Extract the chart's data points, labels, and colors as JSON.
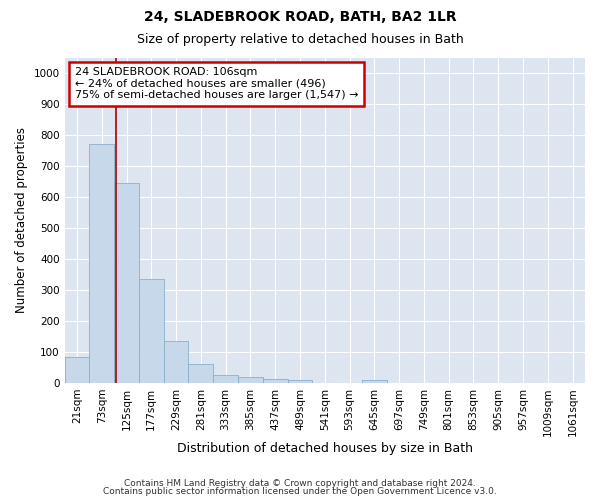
{
  "title": "24, SLADEBROOK ROAD, BATH, BA2 1LR",
  "subtitle": "Size of property relative to detached houses in Bath",
  "xlabel": "Distribution of detached houses by size in Bath",
  "ylabel": "Number of detached properties",
  "bar_color": "#c8d8eb",
  "bar_edge_color": "#8ab0cc",
  "background_color": "#dde6f0",
  "grid_color": "#ffffff",
  "categories": [
    "21sqm",
    "73sqm",
    "125sqm",
    "177sqm",
    "229sqm",
    "281sqm",
    "333sqm",
    "385sqm",
    "437sqm",
    "489sqm",
    "541sqm",
    "593sqm",
    "645sqm",
    "697sqm",
    "749sqm",
    "801sqm",
    "853sqm",
    "905sqm",
    "957sqm",
    "1009sqm",
    "1061sqm"
  ],
  "values": [
    85,
    770,
    645,
    335,
    135,
    60,
    25,
    20,
    13,
    8,
    0,
    0,
    10,
    0,
    0,
    0,
    0,
    0,
    0,
    0,
    0
  ],
  "ylim": [
    0,
    1050
  ],
  "yticks": [
    0,
    100,
    200,
    300,
    400,
    500,
    600,
    700,
    800,
    900,
    1000
  ],
  "red_line_x": 1.575,
  "annotation_text": "24 SLADEBROOK ROAD: 106sqm\n← 24% of detached houses are smaller (496)\n75% of semi-detached houses are larger (1,547) →",
  "annotation_box_color": "#ffffff",
  "annotation_border_color": "#cc0000",
  "footer_line1": "Contains HM Land Registry data © Crown copyright and database right 2024.",
  "footer_line2": "Contains public sector information licensed under the Open Government Licence v3.0.",
  "title_fontsize": 10,
  "subtitle_fontsize": 9,
  "tick_fontsize": 7.5,
  "ylabel_fontsize": 8.5,
  "xlabel_fontsize": 9,
  "annotation_fontsize": 8,
  "footer_fontsize": 6.5
}
